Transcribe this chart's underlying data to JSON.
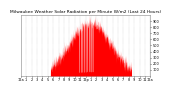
{
  "title": "Milwaukee Weather Solar Radiation per Minute W/m2 (Last 24 Hours)",
  "title_fontsize": 3.2,
  "background_color": "#ffffff",
  "plot_bg_color": "#ffffff",
  "grid_color": "#aaaaaa",
  "fill_color": "#ff0000",
  "line_color": "#dd0000",
  "num_points": 1440,
  "peak_hour": 12.8,
  "peak_value": 870,
  "spread": 3.8,
  "noise_scale": 60,
  "ylim": [
    0,
    1000
  ],
  "yticks": [
    100,
    200,
    300,
    400,
    500,
    600,
    700,
    800,
    900
  ],
  "ylabel_fontsize": 2.5,
  "xlabel_fontsize": 2.5,
  "xtick_labels": [
    "12a",
    "1",
    "2",
    "3",
    "4",
    "5",
    "6",
    "7",
    "8",
    "9",
    "10",
    "11",
    "12p",
    "1",
    "2",
    "3",
    "4",
    "5",
    "6",
    "7",
    "8",
    "9",
    "10",
    "11",
    "12a"
  ],
  "vgrid_hours": [
    0,
    1,
    2,
    3,
    4,
    5,
    6,
    7,
    8,
    9,
    10,
    11,
    12,
    13,
    14,
    15,
    16,
    17,
    18,
    19,
    20,
    21,
    22,
    23,
    24
  ],
  "border_color": "#888888",
  "dip_positions": [
    10.8,
    11.1,
    11.4,
    11.7,
    12.0,
    12.3,
    12.6,
    12.9,
    13.1,
    13.3
  ],
  "day_start": 5.5,
  "day_end": 20.5
}
